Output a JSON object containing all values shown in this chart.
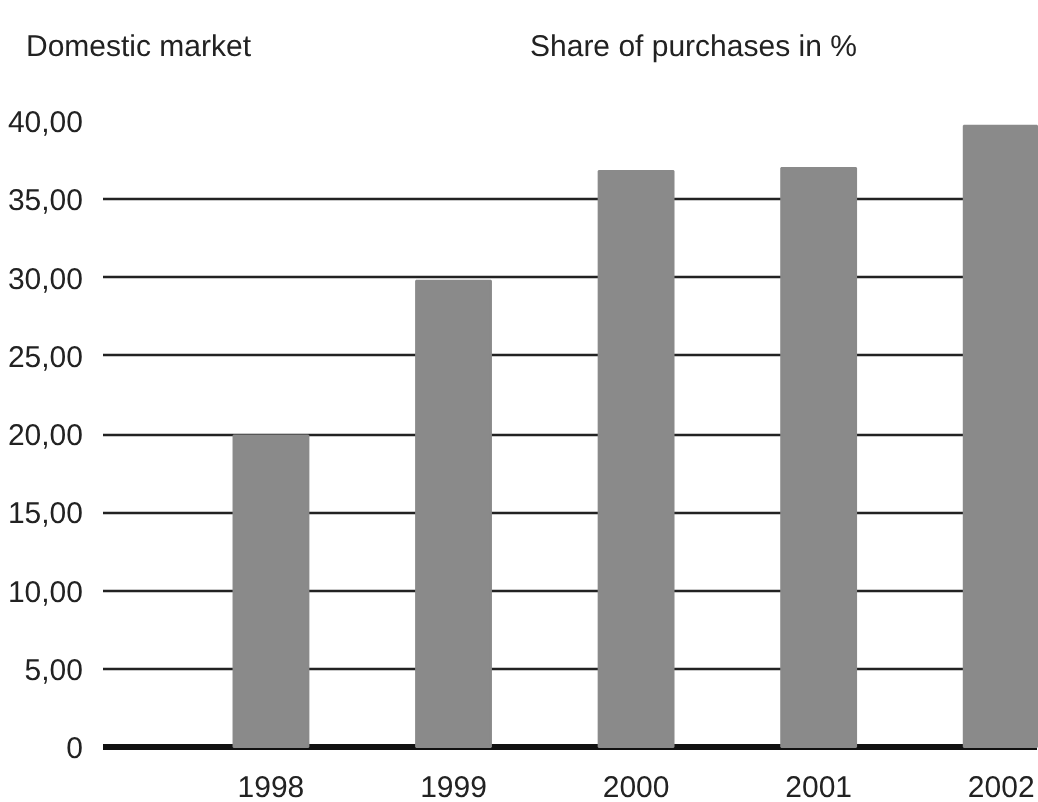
{
  "chart_data": {
    "type": "bar",
    "title": "Domestic market",
    "ylabel": "Share of purchases in %",
    "categories": [
      "1998",
      "1999",
      "2000",
      "2001",
      "2002"
    ],
    "values": [
      19.9,
      29.8,
      36.8,
      37.0,
      39.7
    ],
    "color": "#8a8a8a",
    "ylim": [
      0,
      40
    ],
    "yticks": [
      {
        "value": 0,
        "label": "0"
      },
      {
        "value": 5,
        "label": "5,00"
      },
      {
        "value": 10,
        "label": "10,00"
      },
      {
        "value": 15,
        "label": "15,00"
      },
      {
        "value": 20,
        "label": "20,00"
      },
      {
        "value": 25,
        "label": "25,00"
      },
      {
        "value": 30,
        "label": "30,00"
      },
      {
        "value": 35,
        "label": "35,00"
      },
      {
        "value": 40,
        "label": "40,00"
      }
    ],
    "grid": "y"
  }
}
